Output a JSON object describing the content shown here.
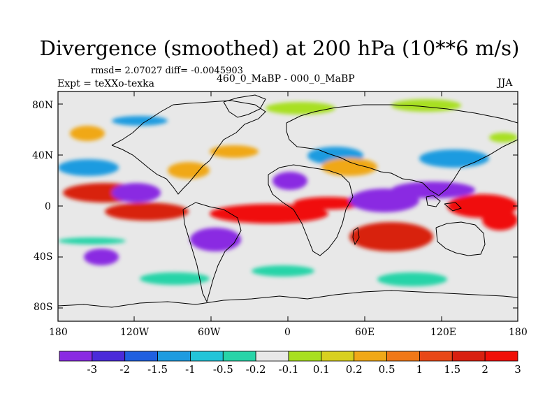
{
  "title": "Divergence (smoothed) at 200 hPa (10**6 m/s)",
  "stats": "rmsd= 2.07027 diff= -0.0045903",
  "experiment": "Expt = teXXo-texka",
  "subtitle": "460_0_MaBP - 000_0_MaBP",
  "season": "JJA",
  "lat_labels": [
    "80N",
    "40N",
    "0",
    "40S",
    "80S"
  ],
  "lon_labels": [
    "180",
    "120W",
    "60W",
    "0",
    "60E",
    "120E",
    "180"
  ],
  "colorbar": {
    "labels": [
      "-3",
      "-2",
      "-1.5",
      "-1",
      "-0.5",
      "-0.2",
      "-0.1",
      "0.1",
      "0.2",
      "0.5",
      "1",
      "1.5",
      "2",
      "3"
    ],
    "colors": [
      "#8a2be2",
      "#4b2bd9",
      "#2060e0",
      "#1e9be0",
      "#22c4d8",
      "#28d4a8",
      "#e8e8e8",
      "#a8e020",
      "#d8d020",
      "#f0a818",
      "#f07818",
      "#e84818",
      "#d82010",
      "#f01008"
    ]
  },
  "map": {
    "background": "#e8e8e8",
    "features": [
      {
        "name": "tropical-pacific-east-band",
        "color": "#d82010"
      },
      {
        "name": "equatorial-atlantic-africa-band",
        "color": "#f01008"
      },
      {
        "name": "southern-indian-max",
        "color": "#d82010"
      },
      {
        "name": "western-pacific-max",
        "color": "#f01008"
      },
      {
        "name": "central-america-min",
        "color": "#8a2be2"
      },
      {
        "name": "indian-ocean-min",
        "color": "#8a2be2"
      },
      {
        "name": "sahara-min",
        "color": "#8a2be2"
      },
      {
        "name": "south-america-min",
        "color": "#8a2be2"
      },
      {
        "name": "mid-latitude-blue-band",
        "color": "#1e9be0"
      },
      {
        "name": "north-atlantic-orange",
        "color": "#f0a818"
      },
      {
        "name": "southern-green-band",
        "color": "#28d4a8"
      },
      {
        "name": "polar-green",
        "color": "#a8e020"
      }
    ]
  }
}
